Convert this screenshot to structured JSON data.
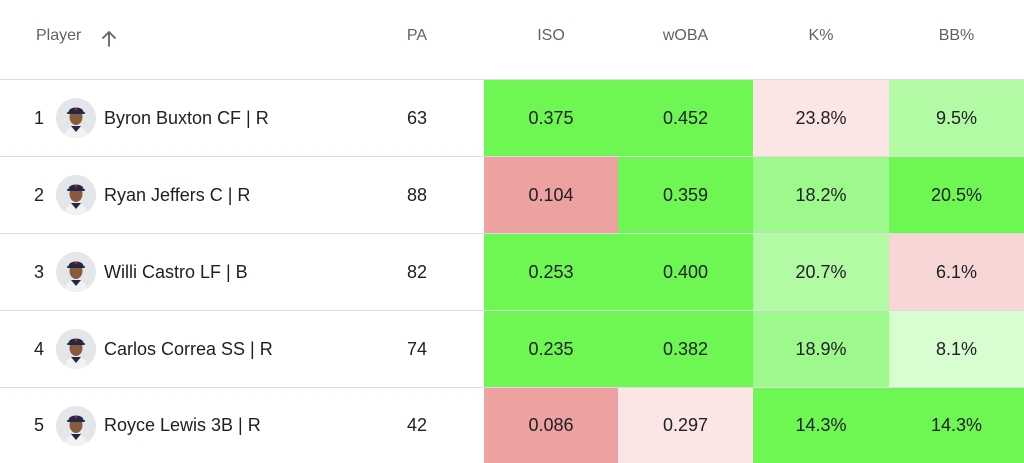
{
  "columns": {
    "player": "Player",
    "pa": "PA",
    "iso": "ISO",
    "woba": "wOBA",
    "k": "K%",
    "bb": "BB%"
  },
  "sort": {
    "column": "player",
    "direction": "ascending",
    "icon": "arrow-up-icon"
  },
  "colors": {
    "strong_green": "#6ef752",
    "light_green": "#b2fba4",
    "pale_green": "#d7fdd0",
    "mid_green": "#9ef98c",
    "strong_red": "#eea1a1",
    "light_red": "#f8d6d6",
    "pale_red": "#fbe5e5"
  },
  "rows": [
    {
      "rank": "1",
      "name": "Byron Buxton CF | R",
      "pa": "63",
      "iso": {
        "value": "0.375",
        "color": "#6ef752"
      },
      "woba": {
        "value": "0.452",
        "color": "#6ef752"
      },
      "k": {
        "value": "23.8%",
        "color": "#fbe5e5"
      },
      "bb": {
        "value": "9.5%",
        "color": "#b2fba4"
      }
    },
    {
      "rank": "2",
      "name": "Ryan Jeffers C | R",
      "pa": "88",
      "iso": {
        "value": "0.104",
        "color": "#eea1a1"
      },
      "woba": {
        "value": "0.359",
        "color": "#6ef752"
      },
      "k": {
        "value": "18.2%",
        "color": "#9ef98c"
      },
      "bb": {
        "value": "20.5%",
        "color": "#6ef752"
      }
    },
    {
      "rank": "3",
      "name": "Willi Castro LF | B",
      "pa": "82",
      "iso": {
        "value": "0.253",
        "color": "#6ef752"
      },
      "woba": {
        "value": "0.400",
        "color": "#6ef752"
      },
      "k": {
        "value": "20.7%",
        "color": "#b2fba4"
      },
      "bb": {
        "value": "6.1%",
        "color": "#f8d6d6"
      }
    },
    {
      "rank": "4",
      "name": "Carlos Correa SS | R",
      "pa": "74",
      "iso": {
        "value": "0.235",
        "color": "#6ef752"
      },
      "woba": {
        "value": "0.382",
        "color": "#6ef752"
      },
      "k": {
        "value": "18.9%",
        "color": "#9ef98c"
      },
      "bb": {
        "value": "8.1%",
        "color": "#d7fdd0"
      }
    },
    {
      "rank": "5",
      "name": "Royce Lewis 3B | R",
      "pa": "42",
      "iso": {
        "value": "0.086",
        "color": "#eea1a1"
      },
      "woba": {
        "value": "0.297",
        "color": "#fbe5e5"
      },
      "k": {
        "value": "14.3%",
        "color": "#6ef752"
      },
      "bb": {
        "value": "14.3%",
        "color": "#6ef752"
      }
    }
  ]
}
